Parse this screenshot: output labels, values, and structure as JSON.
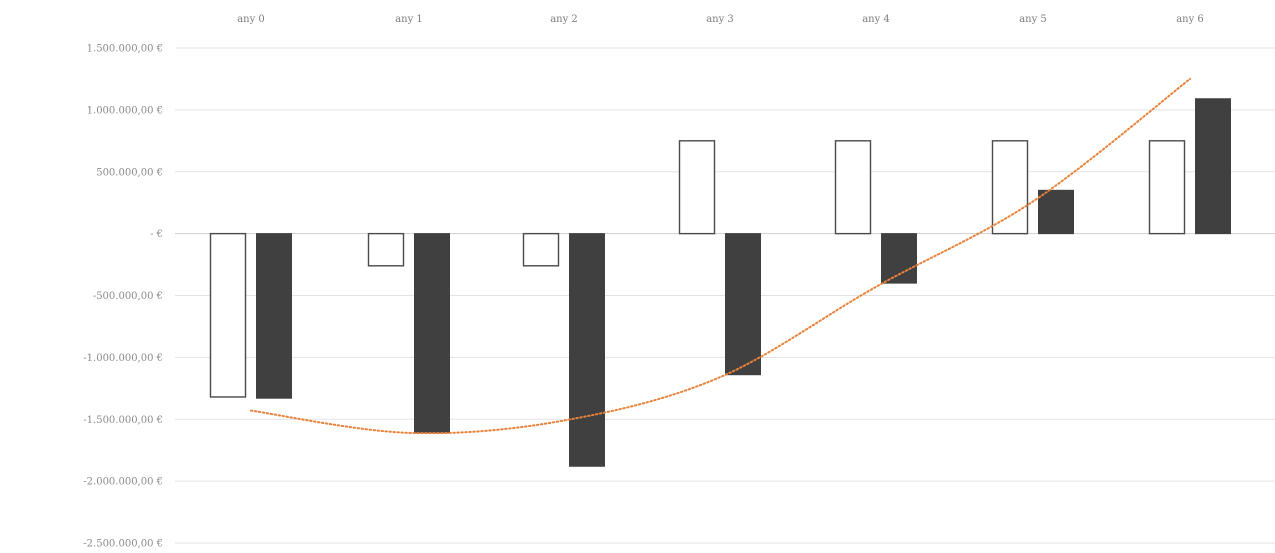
{
  "chart_data": {
    "type": "bar",
    "title": "",
    "xlabel": "",
    "ylabel": "",
    "categories": [
      "any 0",
      "any 1",
      "any 2",
      "any 3",
      "any 4",
      "any 5",
      "any 6"
    ],
    "series": [
      {
        "values": [
          -1320000,
          -260000,
          -260000,
          750000,
          750000,
          750000,
          750000
        ],
        "fill": "#ffffff",
        "stroke": "#4a4a4a"
      },
      {
        "values": [
          -1330000,
          -1610000,
          -1880000,
          -1140000,
          -400000,
          350000,
          1090000
        ],
        "fill": "#404040",
        "stroke": "#404040"
      }
    ],
    "trendline": {
      "kind": "polynomial",
      "style": "dotted",
      "color": "#e8823a",
      "points": [
        [
          0,
          -1430000
        ],
        [
          1,
          -1610000
        ],
        [
          2,
          -1510000
        ],
        [
          3,
          -1160000
        ],
        [
          4,
          -430000
        ],
        [
          5,
          260000
        ],
        [
          6,
          1250000
        ]
      ]
    },
    "ylim": [
      -2500000,
      1500000
    ],
    "yticks": [
      1500000,
      1000000,
      500000,
      0,
      -500000,
      -1000000,
      -1500000,
      -2000000,
      -2500000
    ],
    "ytick_labels": [
      "1.500.000,00 €",
      "1.000.000,00 €",
      "500.000,00 €",
      "- €",
      "-500.000,00 €",
      "-1.000.000,00 €",
      "-1.500.000,00 €",
      "-2.000.000,00 €",
      "-2.500.000,00 €"
    ],
    "xaxis_position": "top",
    "grid": true,
    "legend": "none",
    "colors": {
      "grid": "#e3e3e3",
      "axis": "#cfcfcf",
      "tick_text": "#8a8a8a"
    }
  }
}
